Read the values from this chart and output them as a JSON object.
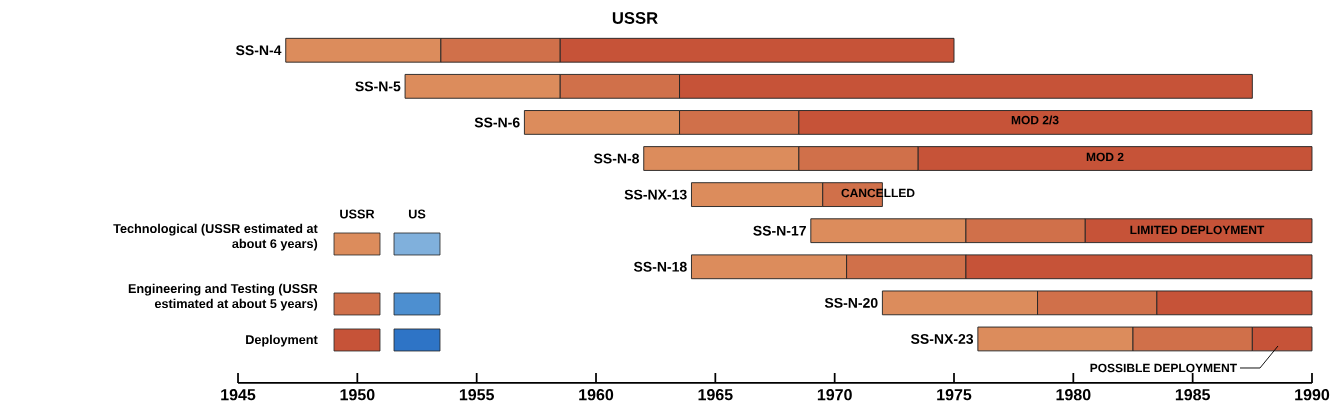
{
  "chart_data": {
    "type": "bar",
    "orientation": "horizontal",
    "title": "USSR",
    "categories": [
      "SS-N-4",
      "SS-N-5",
      "SS-N-6",
      "SS-N-8",
      "SS-NX-13",
      "SS-N-17",
      "SS-N-18",
      "SS-N-20",
      "SS-NX-23"
    ],
    "series": [
      {
        "name": "Technological (USSR estimated at about 6 years)",
        "color": "#dc8c5c",
        "base": [
          1947,
          1952,
          1957,
          1962,
          1964,
          1969,
          1964,
          1972,
          1976
        ],
        "values": [
          6.5,
          6.5,
          6.5,
          6.5,
          5.5,
          6.5,
          6.5,
          6.5,
          6.5
        ]
      },
      {
        "name": "Engineering and Testing (USSR estimated at about 5 years)",
        "color": "#d0704a",
        "base": [
          1953.5,
          1958.5,
          1963.5,
          1968.5,
          1969.5,
          1975.5,
          1970.5,
          1978.5,
          1982.5
        ],
        "values": [
          5,
          5,
          5,
          5,
          2.5,
          5,
          5,
          5,
          5
        ]
      },
      {
        "name": "Deployment",
        "color": "#c65338",
        "base": [
          1958.5,
          1963.5,
          1968.5,
          1973.5,
          null,
          1980.5,
          1975.5,
          1983.5,
          1987.5
        ],
        "values": [
          16.5,
          24,
          21.5,
          16.5,
          null,
          9.5,
          14.5,
          6.5,
          2.5
        ]
      },
      {
        "color": "#80b0dc",
        "values": [
          null,
          null,
          null,
          null,
          null,
          null,
          null,
          null,
          null
        ]
      },
      {
        "color": "#4d8fd0",
        "values": [
          null,
          null,
          null,
          null,
          null,
          null,
          null,
          null,
          null
        ]
      },
      {
        "color": "#2e74c6",
        "values": [
          null,
          null,
          null,
          null,
          null,
          null,
          null,
          null,
          null
        ]
      }
    ],
    "legend": "left",
    "xlim": [
      1945,
      1990
    ],
    "xticks": [
      1945,
      1950,
      1955,
      1960,
      1965,
      1970,
      1975,
      1980,
      1985,
      1990
    ],
    "annotations": [
      "MOD 2/3",
      "MOD 2",
      "CANCELLED",
      "LIMITED DEPLOYMENT",
      "POSSIBLE DEPLOYMENT",
      "USSR",
      "US"
    ]
  }
}
